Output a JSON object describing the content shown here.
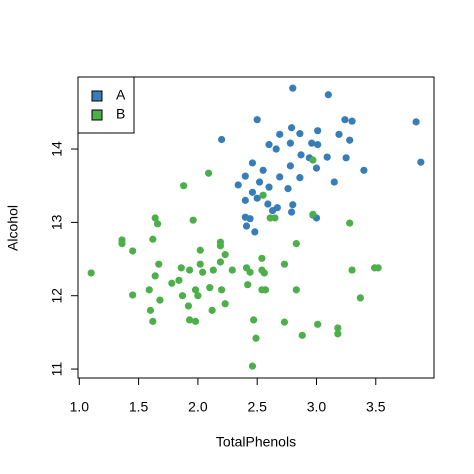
{
  "chart_data": {
    "type": "scatter",
    "xlabel": "TotalPhenols",
    "ylabel": "Alcohol",
    "xlim": [
      0.989,
      3.991
    ],
    "ylim": [
      10.878,
      14.982
    ],
    "xticks": [
      {
        "value": 1.0,
        "label": "1.0"
      },
      {
        "value": 1.5,
        "label": "1.5"
      },
      {
        "value": 2.0,
        "label": "2.0"
      },
      {
        "value": 2.5,
        "label": "2.5"
      },
      {
        "value": 3.0,
        "label": "3.0"
      },
      {
        "value": 3.5,
        "label": "3.5"
      }
    ],
    "yticks": [
      11,
      12,
      13,
      14
    ],
    "grid": false,
    "legend": "topleft",
    "series": [
      {
        "name": "A",
        "color": "#377eb8",
        "x": [
          2.8,
          3.1,
          2.5,
          2.2,
          2.79,
          2.86,
          2.69,
          3.01,
          3.24,
          3.3,
          3.84,
          3.19,
          3.28,
          2.96,
          3.01,
          2.6,
          2.66,
          2.78,
          2.87,
          2.94,
          3.09,
          3.25,
          3.88,
          2.46,
          2.55,
          3.4,
          2.78,
          3.0,
          2.86,
          2.69,
          3.15,
          2.52,
          2.4,
          2.34,
          2.6,
          2.76,
          2.46,
          2.4,
          2.5,
          2.59,
          2.67,
          2.8,
          2.63,
          2.79,
          2.97,
          3.0,
          2.4,
          2.44,
          2.41,
          2.48
        ],
        "y": [
          14.83,
          14.74,
          14.4,
          14.13,
          14.29,
          14.21,
          14.2,
          14.25,
          14.4,
          14.38,
          14.37,
          14.2,
          14.12,
          14.08,
          14.06,
          14.06,
          14.0,
          14.08,
          13.92,
          13.88,
          13.89,
          13.88,
          13.82,
          13.81,
          13.71,
          13.71,
          13.77,
          13.74,
          13.61,
          13.62,
          13.55,
          13.55,
          13.63,
          13.51,
          13.48,
          13.46,
          13.41,
          13.3,
          13.33,
          13.25,
          13.2,
          13.24,
          13.16,
          13.14,
          13.1,
          13.06,
          13.07,
          13.05,
          12.95,
          12.87
        ]
      },
      {
        "name": "B",
        "color": "#4daf4a",
        "x": [
          1.1,
          1.36,
          1.45,
          1.36,
          1.45,
          1.64,
          1.66,
          1.62,
          1.67,
          1.64,
          1.59,
          1.6,
          1.62,
          1.68,
          1.78,
          1.84,
          1.86,
          1.93,
          1.87,
          1.92,
          1.93,
          1.88,
          1.96,
          2.02,
          2.02,
          2.04,
          1.98,
          2.0,
          1.98,
          2.09,
          2.13,
          2.19,
          2.19,
          2.19,
          2.1,
          2.12,
          2.2,
          2.23,
          2.41,
          2.44,
          2.54,
          2.54,
          2.56,
          2.42,
          2.54,
          2.57,
          2.47,
          2.49,
          2.46,
          2.55,
          2.61,
          2.65,
          2.73,
          2.83,
          2.73,
          2.83,
          2.88,
          3.01,
          2.97,
          2.97,
          3.28,
          3.3,
          3.18,
          3.18,
          3.37,
          3.49,
          3.52,
          2.23,
          2.29
        ],
        "y": [
          12.31,
          12.71,
          12.61,
          12.76,
          12.01,
          13.06,
          12.98,
          12.77,
          12.43,
          12.27,
          12.08,
          11.8,
          11.65,
          11.94,
          12.17,
          12.21,
          12.38,
          12.35,
          12.0,
          11.86,
          11.67,
          13.5,
          13.03,
          12.43,
          12.62,
          12.32,
          12.08,
          12.0,
          11.65,
          13.67,
          12.35,
          12.68,
          12.73,
          12.46,
          12.11,
          11.8,
          12.08,
          11.89,
          12.38,
          12.32,
          12.51,
          12.35,
          12.31,
          12.15,
          12.08,
          12.08,
          11.67,
          11.42,
          11.04,
          13.37,
          13.06,
          13.06,
          12.43,
          12.71,
          11.64,
          12.08,
          11.46,
          11.61,
          13.85,
          13.11,
          12.99,
          12.35,
          11.56,
          11.48,
          11.97,
          12.38,
          12.38,
          12.56,
          12.35
        ]
      }
    ]
  }
}
